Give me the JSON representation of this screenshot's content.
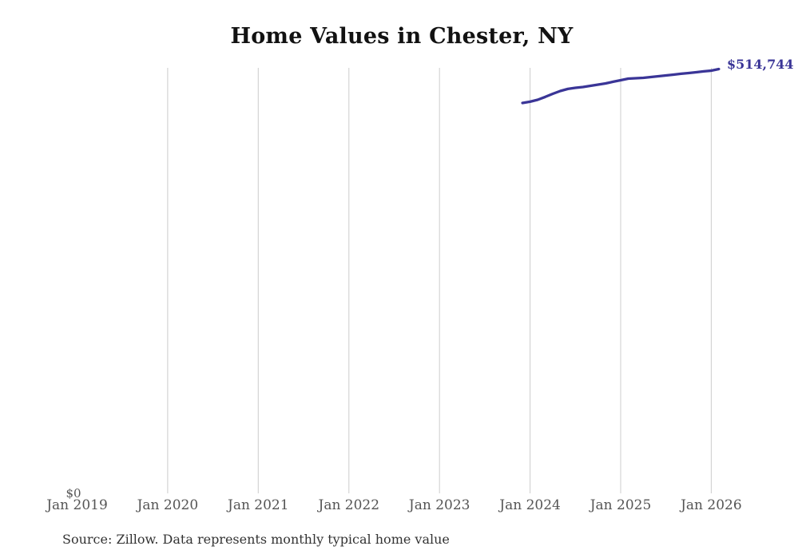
{
  "title": "Home Values in Chester, NY",
  "end_value_label": "$514,744",
  "y_zero_label": "$0",
  "source_note": "Source: Zillow. Data represents monthly typical home value",
  "colors": {
    "line": "#3a3597",
    "end_label": "#3a3597",
    "gridline": "#cccccc",
    "axis_text": "#555555",
    "title_text": "#121212",
    "source_text": "#333333",
    "background": "#ffffff"
  },
  "chart_data": {
    "type": "line",
    "title": "Home Values in Chester, NY",
    "xlabel": "",
    "ylabel": "",
    "grid": "vertical-only",
    "legend_position": "none",
    "x_axis": {
      "tick_labels": [
        "Jan 2019",
        "Jan 2020",
        "Jan 2021",
        "Jan 2022",
        "Jan 2023",
        "Jan 2024",
        "Jan 2025",
        "Jan 2026"
      ],
      "tick_years": [
        2019,
        2020,
        2021,
        2022,
        2023,
        2024,
        2025,
        2026
      ],
      "gridline_years": [
        2020,
        2021,
        2022,
        2023,
        2024,
        2025,
        2026
      ],
      "range": [
        "Jan 2019",
        "Mar 2026"
      ]
    },
    "y_axis": {
      "min": 0,
      "zero_label": "$0",
      "max_plotted_value": 514744
    },
    "x": [
      "2023-12",
      "2024-01",
      "2024-02",
      "2024-03",
      "2024-04",
      "2024-05",
      "2024-06",
      "2024-07",
      "2024-08",
      "2024-09",
      "2024-10",
      "2024-11",
      "2024-12",
      "2025-01",
      "2025-02",
      "2025-03",
      "2025-04",
      "2025-05",
      "2025-06",
      "2025-07",
      "2025-08",
      "2025-09",
      "2025-10",
      "2025-11",
      "2025-12",
      "2026-01",
      "2026-02"
    ],
    "series": [
      {
        "name": "Monthly typical home value",
        "values": [
          473600,
          475100,
          477500,
          480900,
          484700,
          488100,
          490600,
          492000,
          493000,
          494400,
          495900,
          497300,
          499300,
          501200,
          503100,
          503600,
          504100,
          505100,
          506000,
          507000,
          508000,
          509000,
          509900,
          510900,
          511900,
          512800,
          514744
        ],
        "end_label": "$514,744"
      }
    ]
  }
}
